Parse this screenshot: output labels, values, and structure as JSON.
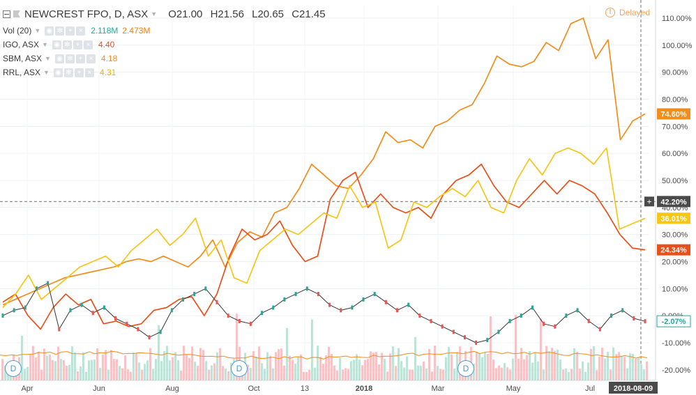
{
  "header": {
    "symbol": "NEWCREST FPO, D, ASX",
    "open": "O21.00",
    "high": "H21.56",
    "low": "L20.65",
    "close": "C21.45",
    "status": "Delayed"
  },
  "legend": {
    "volume": {
      "label": "Vol (20)",
      "value1": "2.118M",
      "value2": "2.473M",
      "color1": "#26a69a",
      "color2": "#f57c00"
    },
    "comparisons": [
      {
        "label": "IGO, ASX",
        "value": "4.40",
        "color": "#e8501a"
      },
      {
        "label": "SBM, ASX",
        "value": "4.18",
        "color": "#f28c1a"
      },
      {
        "label": "RRL, ASX",
        "value": "4.31",
        "color": "#f5c518"
      }
    ]
  },
  "badges": [
    "D",
    "D",
    "D"
  ],
  "chart_data": {
    "type": "line",
    "x_labels": [
      "Apr",
      "Jun",
      "Aug",
      "Oct",
      "13",
      "2018",
      "Mar",
      "May",
      "Jul"
    ],
    "current_date_label": "2018-08-09",
    "y_axis_ticks": [
      "110.00%",
      "100.00%",
      "90.00%",
      "80.00%",
      "70.00%",
      "60.00%",
      "50.00%",
      "40.00%",
      "30.00%",
      "20.00%",
      "10.00%",
      "0.00%",
      "-10.00%",
      "-20.00%"
    ],
    "ylim": [
      -23,
      113
    ],
    "crosshair_value": "42.20%",
    "series": [
      {
        "name": "SBM, ASX",
        "color": "#f28c1a",
        "last_label": "74.60%",
        "values": [
          4,
          6,
          8,
          10,
          12,
          14,
          15,
          16,
          17,
          18,
          20,
          21,
          20,
          22,
          20,
          18,
          22,
          28,
          18,
          27,
          31,
          29,
          38,
          40,
          47,
          56,
          52,
          48,
          47,
          52,
          58,
          68,
          64,
          65,
          62,
          70,
          72,
          76,
          78,
          86,
          96,
          93,
          92,
          94,
          101,
          98,
          108,
          110,
          95,
          102,
          65,
          72,
          74.6
        ]
      },
      {
        "name": "IGO, ASX",
        "color": "#e8501a",
        "last_label": "24.34%",
        "values": [
          5,
          8,
          0,
          -5,
          3,
          8,
          4,
          6,
          -3,
          -2,
          -4,
          -3,
          2,
          3,
          6,
          7,
          0,
          8,
          22,
          32,
          28,
          30,
          35,
          26,
          20,
          22,
          43,
          50,
          53,
          40,
          45,
          40,
          38,
          40,
          36,
          45,
          50,
          52,
          56,
          48,
          42,
          40,
          45,
          50,
          45,
          50,
          48,
          45,
          38,
          30,
          25,
          24.34
        ]
      },
      {
        "name": "RRL, ASX",
        "color": "#f5c518",
        "last_label": "36.01%",
        "values": [
          3,
          8,
          15,
          6,
          10,
          14,
          18,
          20,
          22,
          18,
          24,
          28,
          32,
          26,
          30,
          36,
          22,
          28,
          14,
          12,
          24,
          28,
          32,
          30,
          34,
          38,
          36,
          48,
          40,
          42,
          25,
          28,
          42,
          40,
          44,
          47,
          44,
          50,
          40,
          38,
          50,
          58,
          52,
          60,
          62,
          60,
          56,
          62,
          32,
          34,
          36.01
        ]
      },
      {
        "name": "NEWCREST FPO, D, ASX",
        "color": "#333333",
        "last_label": "-2.07%",
        "values": [
          0,
          2,
          3,
          10,
          12,
          -5,
          2,
          4,
          1,
          3,
          -1,
          -3,
          -5,
          -8,
          -6,
          2,
          6,
          8,
          10,
          5,
          0,
          -2,
          -3,
          1,
          3,
          6,
          8,
          10,
          8,
          4,
          2,
          3,
          6,
          8,
          5,
          2,
          4,
          0,
          -2,
          -4,
          -6,
          -8,
          -10,
          -9,
          -6,
          -2,
          0,
          3,
          -3,
          -4,
          0,
          2,
          -2,
          -5,
          0,
          2,
          -1,
          -2.07
        ]
      }
    ]
  }
}
